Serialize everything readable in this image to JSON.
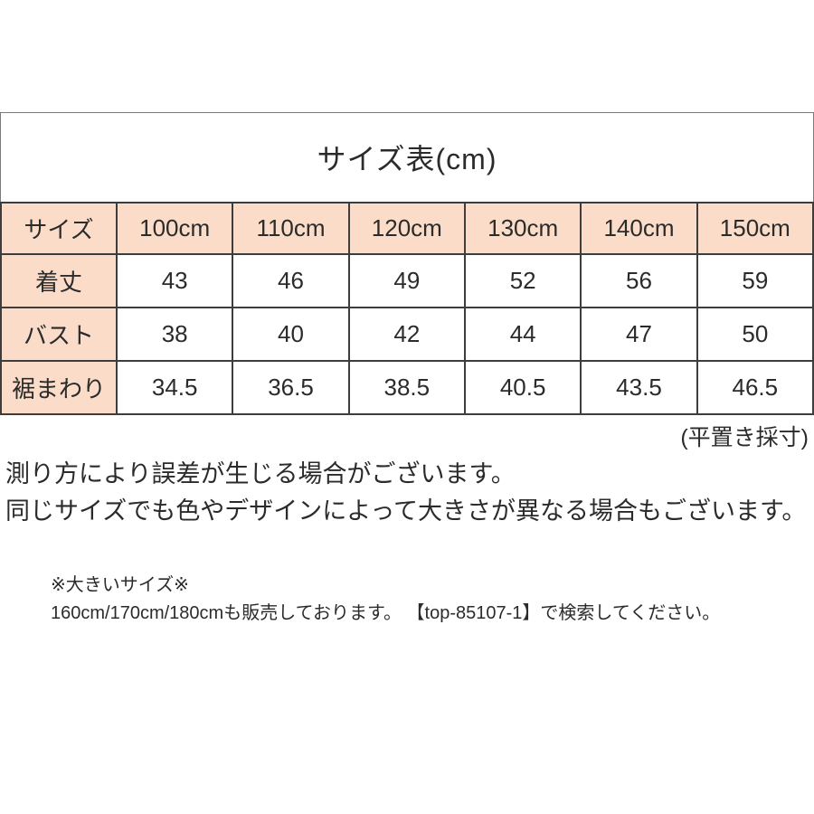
{
  "title": "サイズ表(cm)",
  "measurement_note": "(平置き採寸)",
  "table": {
    "header": [
      "サイズ",
      "100cm",
      "110cm",
      "120cm",
      "130cm",
      "140cm",
      "150cm"
    ],
    "rows": [
      {
        "label": "着丈",
        "values": [
          "43",
          "46",
          "49",
          "52",
          "56",
          "59"
        ]
      },
      {
        "label": "バスト",
        "values": [
          "38",
          "40",
          "42",
          "44",
          "47",
          "50"
        ]
      },
      {
        "label": "裾まわり",
        "values": [
          "34.5",
          "36.5",
          "38.5",
          "40.5",
          "43.5",
          "46.5"
        ]
      }
    ]
  },
  "disclaimer": {
    "line1": "測り方により誤差が生じる場合がございます。",
    "line2": "同じサイズでも色やデザインによって大きさが異なる場合もございます。"
  },
  "big_size_note": {
    "title": "※大きいサイズ※",
    "text": "160cm/170cm/180cmも販売しております。 【top-85107-1】で検索してください。"
  },
  "colors": {
    "header_bg": "#fadcc8",
    "table_border": "#3d3d3d",
    "frame_border": "#7a7a7a",
    "text": "#2b2b2b"
  }
}
